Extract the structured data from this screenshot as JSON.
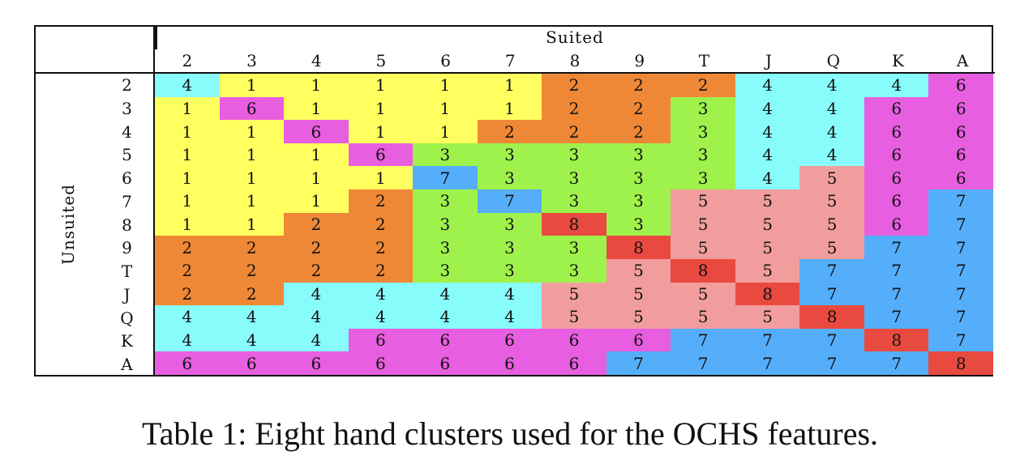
{
  "table": {
    "suited_label": "Suited",
    "unsuited_label": "Unsuited",
    "columns": [
      "2",
      "3",
      "4",
      "5",
      "6",
      "7",
      "8",
      "9",
      "T",
      "J",
      "Q",
      "K",
      "A"
    ],
    "rows": [
      "2",
      "3",
      "4",
      "5",
      "6",
      "7",
      "8",
      "9",
      "T",
      "J",
      "Q",
      "K",
      "A"
    ],
    "values": [
      [
        "4",
        "1",
        "1",
        "1",
        "1",
        "1",
        "2",
        "2",
        "2",
        "4",
        "4",
        "4",
        "6"
      ],
      [
        "1",
        "6",
        "1",
        "1",
        "1",
        "1",
        "2",
        "2",
        "3",
        "4",
        "4",
        "6",
        "6"
      ],
      [
        "1",
        "1",
        "6",
        "1",
        "1",
        "2",
        "2",
        "2",
        "3",
        "4",
        "4",
        "6",
        "6"
      ],
      [
        "1",
        "1",
        "1",
        "6",
        "3",
        "3",
        "3",
        "3",
        "3",
        "4",
        "4",
        "6",
        "6"
      ],
      [
        "1",
        "1",
        "1",
        "1",
        "7",
        "3",
        "3",
        "3",
        "3",
        "4",
        "5",
        "6",
        "6"
      ],
      [
        "1",
        "1",
        "1",
        "2",
        "3",
        "7",
        "3",
        "3",
        "5",
        "5",
        "5",
        "6",
        "7"
      ],
      [
        "1",
        "1",
        "2",
        "2",
        "3",
        "3",
        "8",
        "3",
        "5",
        "5",
        "5",
        "6",
        "7"
      ],
      [
        "2",
        "2",
        "2",
        "2",
        "3",
        "3",
        "3",
        "8",
        "5",
        "5",
        "5",
        "7",
        "7"
      ],
      [
        "2",
        "2",
        "2",
        "2",
        "3",
        "3",
        "3",
        "5",
        "8",
        "5",
        "7",
        "7",
        "7"
      ],
      [
        "2",
        "2",
        "4",
        "4",
        "4",
        "4",
        "5",
        "5",
        "5",
        "8",
        "7",
        "7",
        "7"
      ],
      [
        "4",
        "4",
        "4",
        "4",
        "4",
        "4",
        "5",
        "5",
        "5",
        "5",
        "8",
        "7",
        "7"
      ],
      [
        "4",
        "4",
        "4",
        "6",
        "6",
        "6",
        "6",
        "6",
        "7",
        "7",
        "7",
        "8",
        "7"
      ],
      [
        "6",
        "6",
        "6",
        "6",
        "6",
        "6",
        "6",
        "7",
        "7",
        "7",
        "7",
        "7",
        "8"
      ]
    ],
    "cluster_colors": {
      "1": "#ffff5f",
      "2": "#ef8836",
      "3": "#9ff24c",
      "4": "#88fbfb",
      "5": "#f29d9d",
      "6": "#e85ee0",
      "7": "#55aefa",
      "8": "#e94a40"
    }
  },
  "caption": "Table 1: Eight hand clusters used for the OCHS features."
}
